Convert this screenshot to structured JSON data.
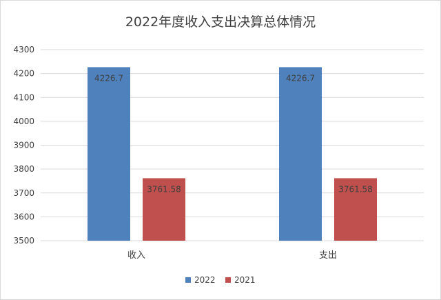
{
  "chart_data": {
    "type": "bar",
    "title": "2022年度收入支出决算总体情况",
    "categories": [
      "收入",
      "支出"
    ],
    "series": [
      {
        "name": "2022",
        "values": [
          4226.7,
          4226.7
        ],
        "labels": [
          "4226.7",
          "4226.7"
        ]
      },
      {
        "name": "2021",
        "values": [
          3761.58,
          3761.58
        ],
        "labels": [
          "3761.58",
          "3761.58"
        ]
      }
    ],
    "ylim": [
      3500,
      4300
    ],
    "yticks": [
      "3500",
      "3600",
      "3700",
      "3800",
      "3900",
      "4000",
      "4100",
      "4200",
      "4300"
    ],
    "grid": true,
    "legend_position": "bottom",
    "colors": {
      "2022": "#4f81bd",
      "2021": "#c0504d"
    }
  }
}
